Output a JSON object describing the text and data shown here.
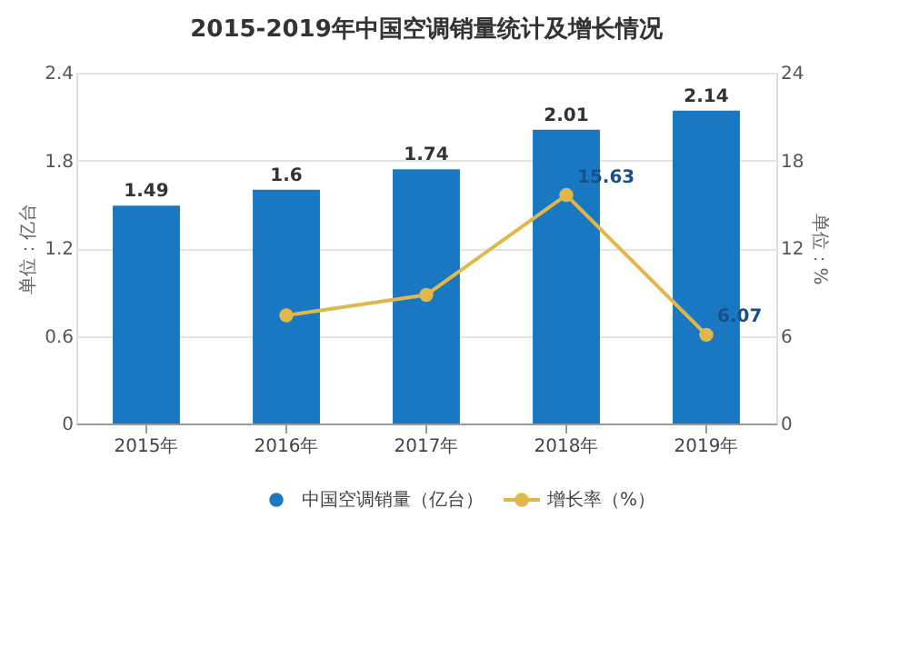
{
  "chart_data": {
    "type": "bar",
    "title": "2015-2019年中国空调销量统计及增长情况",
    "categories": [
      "2015年",
      "2016年",
      "2017年",
      "2018年",
      "2019年"
    ],
    "series": [
      {
        "name": "中国空调销量（亿台）",
        "color": "#1a78c2",
        "values": [
          1.49,
          1.6,
          1.74,
          2.01,
          2.14
        ],
        "value_labels": [
          "1.49",
          "1.6",
          "1.74",
          "2.01",
          "2.14"
        ]
      },
      {
        "name": "增长率（%）",
        "type": "line",
        "axis": "y2",
        "color": "#e0b84a",
        "marker": "circle",
        "values": [
          null,
          7.4,
          8.8,
          15.63,
          6.07
        ],
        "value_labels": [
          null,
          null,
          null,
          "15.63",
          "6.07"
        ]
      }
    ],
    "ylabel": "单位：亿台",
    "y2label": "单位：%",
    "ylim": [
      0,
      2.4
    ],
    "yticks": [
      0,
      0.6,
      1.2,
      1.8,
      2.4
    ],
    "y2lim": [
      0,
      24
    ],
    "y2ticks": [
      0,
      6,
      12,
      18,
      24
    ],
    "grid": "y",
    "legend": "bottom"
  }
}
